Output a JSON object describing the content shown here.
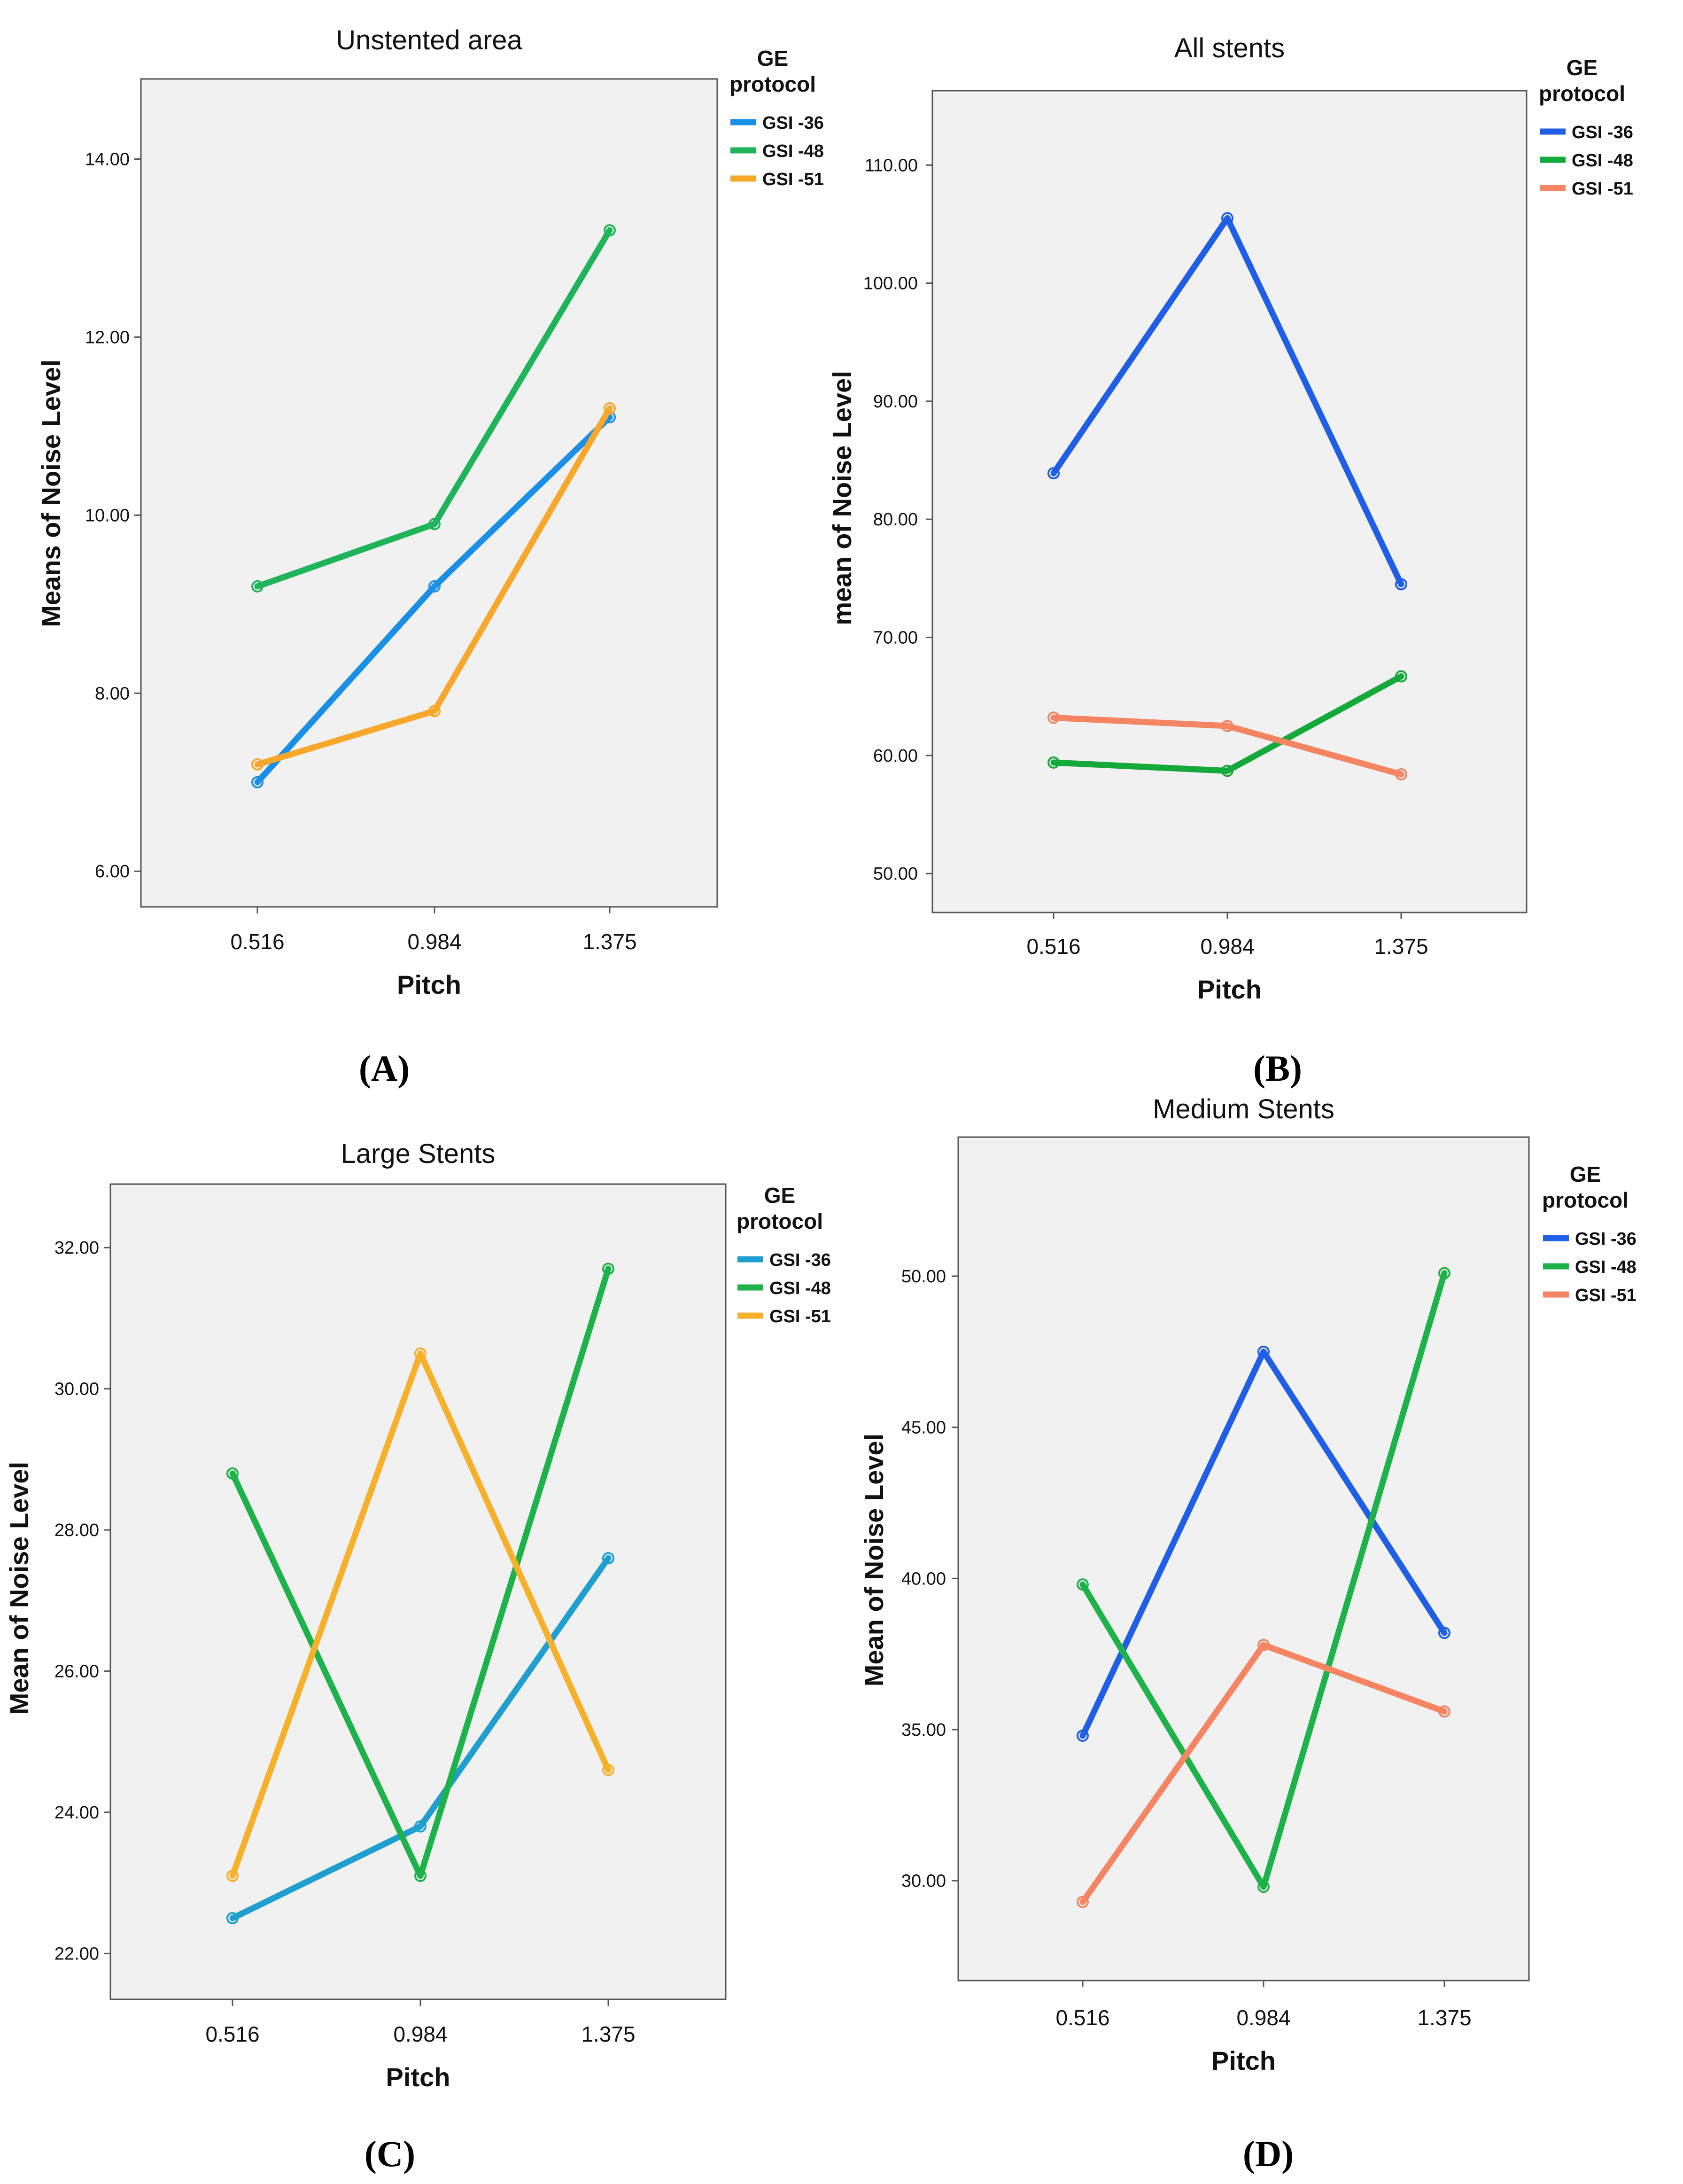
{
  "figure": {
    "panel_letters": [
      "(A)",
      "(B)",
      "(C)",
      "(D)"
    ]
  },
  "chart_data": [
    {
      "type": "line",
      "title": "Unstented area",
      "xlabel": "Pitch",
      "ylabel": "Means of Noise Level",
      "categories": [
        "0.516",
        "0.984",
        "1.375"
      ],
      "yticks": [
        "6.00",
        "8.00",
        "10.00",
        "12.00",
        "14.00"
      ],
      "ylim": [
        5.6,
        14.9
      ],
      "legend_title": "GE protocol",
      "legend_position": "right",
      "grid": false,
      "series": [
        {
          "name": "GSI -36",
          "color": "#1a8fe6",
          "values": [
            7.0,
            9.2,
            11.1
          ]
        },
        {
          "name": "GSI -48",
          "color": "#1fb35a",
          "values": [
            9.2,
            9.9,
            13.2
          ]
        },
        {
          "name": "GSI -51",
          "color": "#f7a82a",
          "values": [
            7.2,
            7.8,
            11.2
          ]
        }
      ]
    },
    {
      "type": "line",
      "title": "All stents",
      "xlabel": "Pitch",
      "ylabel": "mean of Noise Level",
      "categories": [
        "0.516",
        "0.984",
        "1.375"
      ],
      "yticks": [
        "50.00",
        "60.00",
        "70.00",
        "80.00",
        "90.00",
        "100.00",
        "110.00"
      ],
      "ylim": [
        46.7,
        116.3
      ],
      "legend_title": "GE protocol",
      "legend_position": "right",
      "grid": false,
      "series": [
        {
          "name": "GSI -36",
          "color": "#1f5ee6",
          "values": [
            83.9,
            105.5,
            74.5
          ]
        },
        {
          "name": "GSI -48",
          "color": "#15a83a",
          "values": [
            59.4,
            58.7,
            66.7
          ]
        },
        {
          "name": "GSI -51",
          "color": "#f58562",
          "values": [
            63.2,
            62.5,
            58.4
          ]
        }
      ]
    },
    {
      "type": "line",
      "title": "Large Stents",
      "xlabel": "Pitch",
      "ylabel": "Mean of Noise Level",
      "categories": [
        "0.516",
        "0.984",
        "1.375"
      ],
      "yticks": [
        "22.00",
        "24.00",
        "26.00",
        "28.00",
        "30.00",
        "32.00"
      ],
      "ylim": [
        21.35,
        32.9
      ],
      "legend_title": "GE protocol",
      "legend_position": "right",
      "grid": false,
      "series": [
        {
          "name": "GSI -36",
          "color": "#1f9fcf",
          "values": [
            22.5,
            23.8,
            27.6
          ]
        },
        {
          "name": "GSI -48",
          "color": "#1db34a",
          "values": [
            28.8,
            23.1,
            31.7
          ]
        },
        {
          "name": "GSI -51",
          "color": "#f7b02a",
          "values": [
            23.1,
            30.5,
            24.6
          ]
        }
      ]
    },
    {
      "type": "line",
      "title": "Medium Stents",
      "xlabel": "Pitch",
      "ylabel": "Mean of Noise Level",
      "categories": [
        "0.516",
        "0.984",
        "1.375"
      ],
      "yticks": [
        "30.00",
        "35.00",
        "40.00",
        "45.00",
        "50.00"
      ],
      "ylim": [
        26.7,
        54.6
      ],
      "legend_title": "GE protocol",
      "legend_position": "right",
      "grid": false,
      "series": [
        {
          "name": "GSI -36",
          "color": "#1f5ee6",
          "values": [
            34.8,
            47.5,
            38.2
          ]
        },
        {
          "name": "GSI -48",
          "color": "#1db34a",
          "values": [
            39.8,
            29.8,
            50.1
          ]
        },
        {
          "name": "GSI -51",
          "color": "#f58562",
          "values": [
            29.3,
            37.8,
            35.6
          ]
        }
      ]
    }
  ]
}
